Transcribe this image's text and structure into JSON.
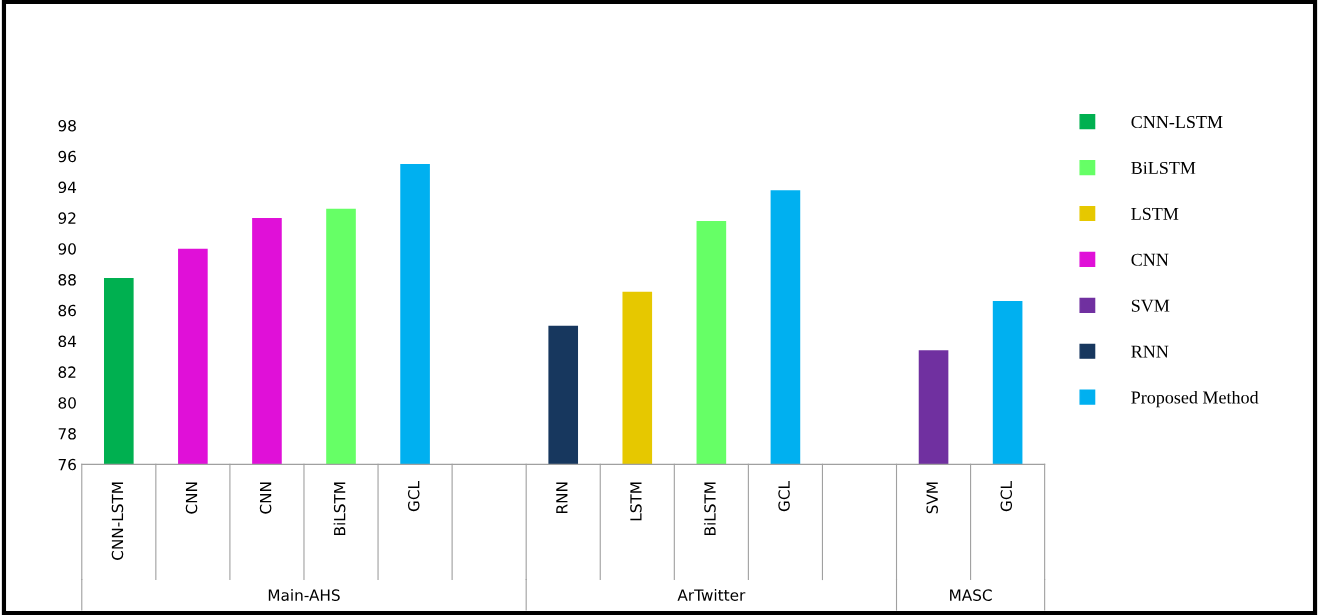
{
  "chart_data": {
    "type": "bar",
    "categories": [
      "CNN-LSTM",
      "CNN",
      "CNN",
      "BiLSTM",
      "GCL",
      null,
      "RNN",
      "LSTM",
      "BiLSTM",
      "GCL",
      null,
      "SVM",
      "GCL"
    ],
    "series": [
      {
        "name": "CNN-LSTM",
        "color": "#00b050",
        "values": [
          88.1,
          null,
          null,
          null,
          null,
          null,
          null,
          null,
          null,
          null,
          null,
          null,
          null
        ]
      },
      {
        "name": "BiLSTM",
        "color": "#66ff66",
        "values": [
          null,
          null,
          null,
          92.6,
          null,
          null,
          null,
          null,
          91.8,
          null,
          null,
          null,
          null
        ]
      },
      {
        "name": "LSTM",
        "color": "#e6c800",
        "values": [
          null,
          null,
          null,
          null,
          null,
          null,
          null,
          87.2,
          null,
          null,
          null,
          null,
          null
        ]
      },
      {
        "name": "CNN",
        "color": "#e010d8",
        "values": [
          null,
          90.0,
          92.0,
          null,
          null,
          null,
          null,
          null,
          null,
          null,
          null,
          null,
          null
        ]
      },
      {
        "name": "SVM",
        "color": "#7030a0",
        "values": [
          null,
          null,
          null,
          null,
          null,
          null,
          null,
          null,
          null,
          null,
          null,
          83.4,
          null
        ]
      },
      {
        "name": "RNN",
        "color": "#17375e",
        "values": [
          null,
          null,
          null,
          null,
          null,
          null,
          85.0,
          null,
          null,
          null,
          null,
          null,
          null
        ]
      },
      {
        "name": "Proposed Method",
        "color": "#00b0f0",
        "values": [
          null,
          null,
          null,
          null,
          95.5,
          null,
          null,
          null,
          null,
          93.8,
          null,
          null,
          86.6
        ]
      }
    ],
    "ylim": [
      76,
      98
    ],
    "yticks": [
      76,
      78,
      80,
      82,
      84,
      86,
      88,
      90,
      92,
      94,
      96,
      98
    ],
    "annotations": [
      "Main-AHS",
      "ArTwitter",
      "MASC"
    ],
    "legend": "right",
    "grid": false
  }
}
